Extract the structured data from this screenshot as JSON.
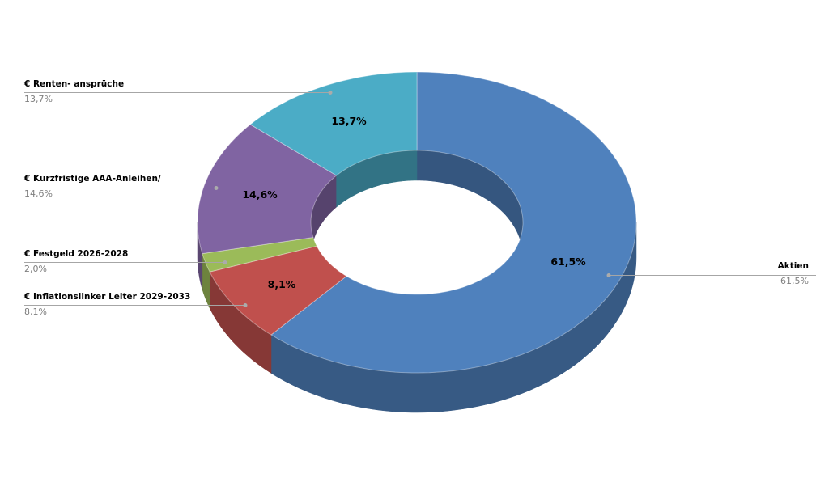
{
  "background": "#FFFFFF",
  "chart_data": {
    "type": "pie",
    "subtype": "doughnut-3d",
    "title": "",
    "legend": "none",
    "label_style": "callouts-with-leader-lines",
    "direction": "clockwise",
    "start_angle_deg": 0,
    "hole": true,
    "effect_3d": true,
    "categories": [
      "Aktien",
      "€ Inflationslinker Leiter 2029-2033",
      "€ Festgeld 2026-2028",
      "€ Kurzfristige AAA-Anleihen/",
      "€ Renten- ansprüche"
    ],
    "values": [
      61.5,
      8.1,
      2.0,
      14.6,
      13.7
    ],
    "slices": [
      {
        "label": "Aktien",
        "value_pct": 61.5,
        "inner_label": "61,5%",
        "color": "#4F81BD"
      },
      {
        "label": "€ Inflationslinker Leiter 2029-2033",
        "value_pct": 8.1,
        "inner_label": "8,1%",
        "color": "#C0504D"
      },
      {
        "label": "€ Festgeld 2026-2028",
        "value_pct": 2.0,
        "inner_label": "",
        "color": "#9BBB59"
      },
      {
        "label": "€ Kurzfristige AAA-Anleihen/",
        "value_pct": 14.6,
        "inner_label": "14,6%",
        "color": "#8064A2"
      },
      {
        "label": "€ Renten- ansprüche",
        "value_pct": 13.7,
        "inner_label": "13,7%",
        "color": "#4BACC6"
      }
    ],
    "callouts": [
      {
        "label": "€ Renten- ansprüche",
        "value": "13,7%",
        "side": "left"
      },
      {
        "label": "€ Kurzfristige AAA-Anleihen/",
        "value": "14,6%",
        "side": "left"
      },
      {
        "label": "€ Festgeld 2026-2028",
        "value": "2,0%",
        "side": "left"
      },
      {
        "label": "€ Inflationslinker Leiter 2029-2033",
        "value": "8,1%",
        "side": "left"
      },
      {
        "label": "Aktien",
        "value": "61,5%",
        "side": "right"
      }
    ],
    "label_color": "#000000",
    "value_color": "#7F7F7F",
    "leader_color": "#A6A6A6",
    "leader_dot_color": "#ABABAB"
  }
}
